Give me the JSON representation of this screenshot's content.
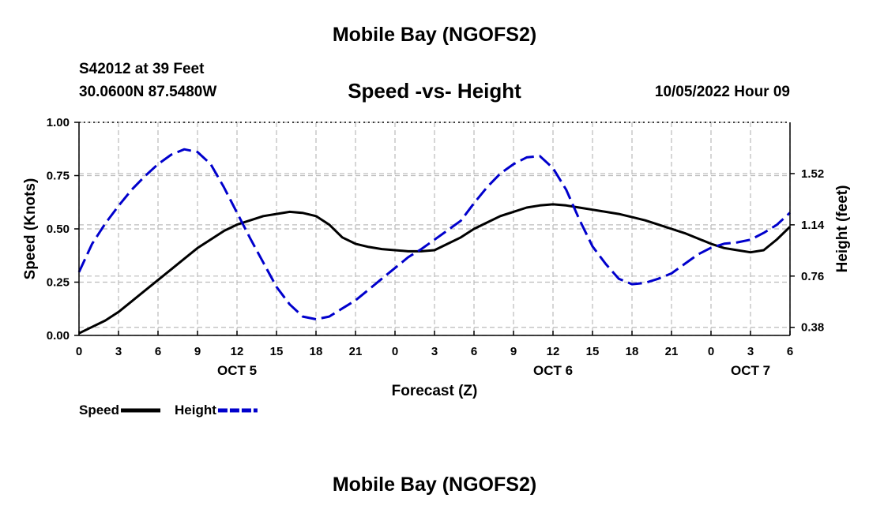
{
  "header": {
    "title": "Mobile Bay (NGOFS2)",
    "station": "S42012 at 39 Feet",
    "coordinates": "30.0600N  87.5480W",
    "chart_title": "Speed -vs- Height",
    "timestamp": "10/05/2022 Hour 09"
  },
  "footer": {
    "title": "Mobile Bay (NGOFS2)"
  },
  "chart_data": {
    "type": "line",
    "title": "Speed -vs- Height",
    "xlabel": "Forecast (Z)",
    "ylabel": "Speed (Knots)",
    "y2label": "Height (feet)",
    "x_range": [
      0,
      54
    ],
    "ylim": [
      0,
      1.0
    ],
    "y2lim": [
      0.32,
      1.9
    ],
    "grid": true,
    "legend_position": "bottom-left",
    "x_ticks": [
      {
        "x": 0,
        "label": "0"
      },
      {
        "x": 3,
        "label": "3"
      },
      {
        "x": 6,
        "label": "6"
      },
      {
        "x": 9,
        "label": "9"
      },
      {
        "x": 12,
        "label": "12"
      },
      {
        "x": 15,
        "label": "15"
      },
      {
        "x": 18,
        "label": "18"
      },
      {
        "x": 21,
        "label": "21"
      },
      {
        "x": 24,
        "label": "0"
      },
      {
        "x": 27,
        "label": "3"
      },
      {
        "x": 30,
        "label": "6"
      },
      {
        "x": 33,
        "label": "9"
      },
      {
        "x": 36,
        "label": "12"
      },
      {
        "x": 39,
        "label": "15"
      },
      {
        "x": 42,
        "label": "18"
      },
      {
        "x": 45,
        "label": "21"
      },
      {
        "x": 48,
        "label": "0"
      },
      {
        "x": 51,
        "label": "3"
      },
      {
        "x": 54,
        "label": "6"
      }
    ],
    "date_labels": [
      {
        "x": 12,
        "label": "OCT 5"
      },
      {
        "x": 36,
        "label": "OCT 6"
      },
      {
        "x": 51,
        "label": "OCT 7"
      }
    ],
    "y_ticks": [
      {
        "value": 0,
        "label": "0.00"
      },
      {
        "value": 0.25,
        "label": "0.25"
      },
      {
        "value": 0.5,
        "label": "0.50"
      },
      {
        "value": 0.75,
        "label": "0.75"
      },
      {
        "value": 1.0,
        "label": "1.00"
      }
    ],
    "y2_ticks": [
      {
        "value": 0.38,
        "label": "0.38"
      },
      {
        "value": 0.76,
        "label": "0.76"
      },
      {
        "value": 1.14,
        "label": "1.14"
      },
      {
        "value": 1.52,
        "label": "1.52"
      }
    ],
    "series": [
      {
        "name": "Speed",
        "axis": "left",
        "color": "#000000",
        "style": "solid",
        "x": [
          0,
          1,
          2,
          3,
          4,
          5,
          6,
          7,
          8,
          9,
          10,
          11,
          12,
          13,
          14,
          15,
          16,
          17,
          18,
          19,
          20,
          21,
          22,
          23,
          24,
          25,
          26,
          27,
          28,
          29,
          30,
          31,
          32,
          33,
          34,
          35,
          36,
          37,
          38,
          39,
          40,
          41,
          42,
          43,
          44,
          45,
          46,
          47,
          48,
          49,
          50,
          51,
          52,
          53,
          54
        ],
        "values": [
          0.01,
          0.04,
          0.07,
          0.11,
          0.16,
          0.21,
          0.26,
          0.31,
          0.36,
          0.41,
          0.45,
          0.49,
          0.52,
          0.54,
          0.56,
          0.57,
          0.58,
          0.575,
          0.56,
          0.52,
          0.46,
          0.43,
          0.415,
          0.405,
          0.4,
          0.395,
          0.395,
          0.4,
          0.43,
          0.46,
          0.5,
          0.53,
          0.56,
          0.58,
          0.6,
          0.61,
          0.615,
          0.61,
          0.6,
          0.59,
          0.58,
          0.57,
          0.555,
          0.54,
          0.52,
          0.5,
          0.48,
          0.455,
          0.43,
          0.41,
          0.4,
          0.39,
          0.4,
          0.45,
          0.51
        ]
      },
      {
        "name": "Height",
        "axis": "right",
        "color": "#0000cc",
        "style": "dashed",
        "x": [
          0,
          1,
          2,
          3,
          4,
          5,
          6,
          7,
          8,
          9,
          10,
          11,
          12,
          13,
          14,
          15,
          16,
          17,
          18,
          19,
          20,
          21,
          22,
          23,
          24,
          25,
          26,
          27,
          28,
          29,
          30,
          31,
          32,
          33,
          34,
          35,
          36,
          37,
          38,
          39,
          40,
          41,
          42,
          43,
          44,
          45,
          46,
          47,
          48,
          49,
          50,
          51,
          52,
          53,
          54
        ],
        "values": [
          0.79,
          1.0,
          1.15,
          1.28,
          1.4,
          1.5,
          1.59,
          1.66,
          1.7,
          1.68,
          1.59,
          1.42,
          1.23,
          1.04,
          0.86,
          0.68,
          0.55,
          0.46,
          0.44,
          0.46,
          0.52,
          0.58,
          0.66,
          0.74,
          0.82,
          0.9,
          0.96,
          1.03,
          1.1,
          1.17,
          1.3,
          1.42,
          1.52,
          1.59,
          1.64,
          1.65,
          1.56,
          1.4,
          1.18,
          0.98,
          0.85,
          0.74,
          0.7,
          0.71,
          0.74,
          0.78,
          0.85,
          0.92,
          0.97,
          1.0,
          1.01,
          1.03,
          1.08,
          1.14,
          1.23
        ]
      }
    ]
  }
}
